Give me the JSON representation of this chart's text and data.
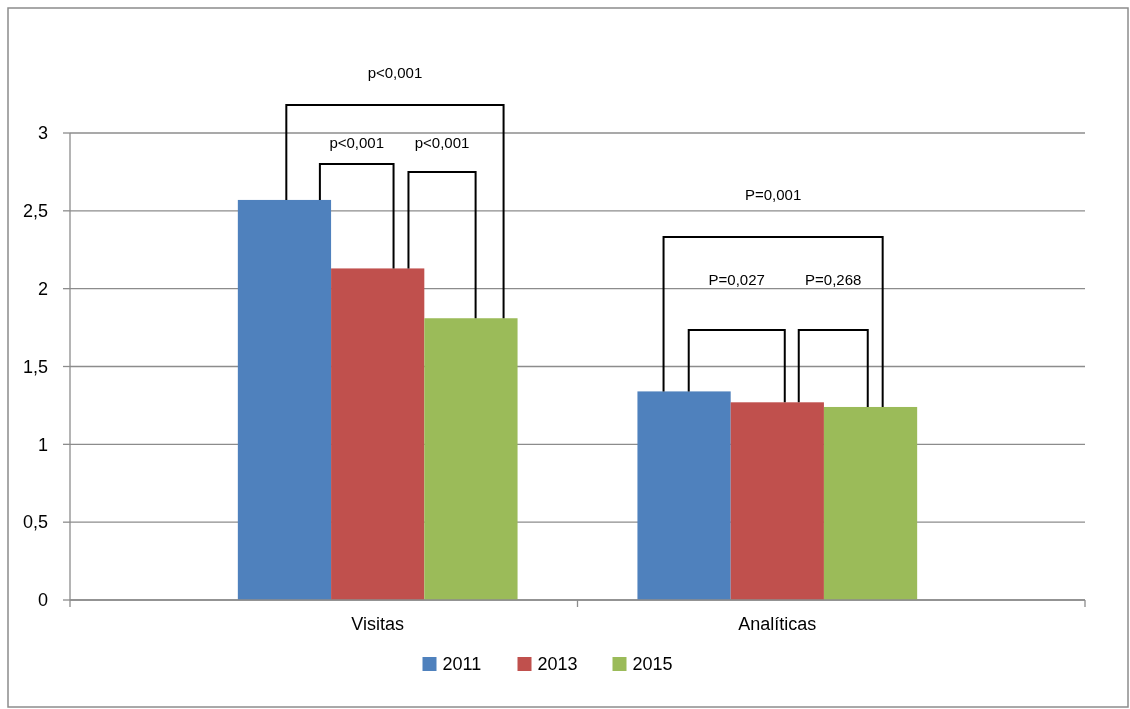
{
  "chart_data": {
    "type": "bar",
    "categories": [
      "Visitas",
      "Analíticas"
    ],
    "series": [
      {
        "name": "2011",
        "color": "#4f81bd",
        "values": [
          2.57,
          1.34
        ]
      },
      {
        "name": "2013",
        "color": "#c0504d",
        "values": [
          2.13,
          1.27
        ]
      },
      {
        "name": "2015",
        "color": "#9bbb59",
        "values": [
          1.81,
          1.24
        ]
      }
    ],
    "ylim": [
      0,
      3
    ],
    "yticks": [
      0,
      {
        "value": 0.5,
        "label": "0,5"
      },
      1,
      {
        "value": 1.5,
        "label": "1,5"
      },
      2,
      {
        "value": 2.5,
        "label": "2,5"
      },
      3
    ],
    "grid": "y",
    "legend": "bottom",
    "annotations": [
      "p<0,001",
      "p<0,001",
      "p<0,001",
      "P=0,001",
      "P=0,027",
      "P=0,268"
    ]
  }
}
